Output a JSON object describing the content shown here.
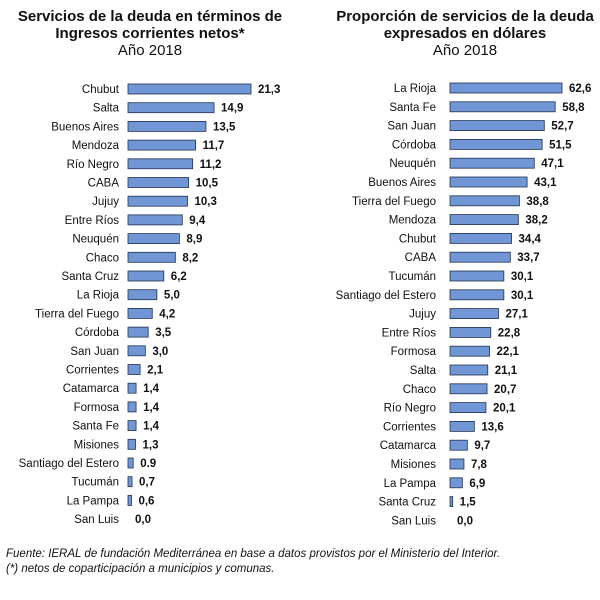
{
  "chart_data": [
    {
      "type": "bar",
      "orientation": "horizontal",
      "title": "Servicios de la deuda en términos de Ingresos corrientes netos*",
      "subtitle": "Año 2018",
      "bar_color": "#7096d6",
      "categories": [
        "Chubut",
        "Salta",
        "Buenos Aires",
        "Mendoza",
        "Río Negro",
        "CABA",
        "Jujuy",
        "Entre Ríos",
        "Neuquén",
        "Chaco",
        "Santa Cruz",
        "La Rioja",
        "Tierra del Fuego",
        "Córdoba",
        "San Juan",
        "Corrientes",
        "Catamarca",
        "Formosa",
        "Santa Fe",
        "Misiones",
        "Santiago del Estero",
        "Tucumán",
        "La Pampa",
        "San Luis"
      ],
      "values": [
        21.3,
        14.9,
        13.5,
        11.7,
        11.2,
        10.5,
        10.3,
        9.4,
        8.9,
        8.2,
        6.2,
        5.0,
        4.2,
        3.5,
        3.0,
        2.1,
        1.4,
        1.4,
        1.4,
        1.3,
        0.9,
        0.7,
        0.6,
        0.0
      ],
      "value_labels": [
        "21,3",
        "14,9",
        "13,5",
        "11,7",
        "11,2",
        "10,5",
        "10,3",
        "9,4",
        "8,9",
        "8,2",
        "6,2",
        "5,0",
        "4,2",
        "3,5",
        "3,0",
        "2,1",
        "1,4",
        "1,4",
        "1,4",
        "1,3",
        "0.9",
        "0,7",
        "0,6",
        "0,0"
      ],
      "xlim": [
        0,
        21.3
      ]
    },
    {
      "type": "bar",
      "orientation": "horizontal",
      "title": "Proporción de servicios de la deuda expresados en dólares",
      "subtitle": "Año 2018",
      "bar_color": "#7096d6",
      "categories": [
        "La Rioja",
        "Santa Fe",
        "San Juan",
        "Córdoba",
        "Neuquén",
        "Buenos Aires",
        "Tierra del Fuego",
        "Mendoza",
        "Chubut",
        "CABA",
        "Tucumán",
        "Santiago del Estero",
        "Jujuy",
        "Entre Ríos",
        "Formosa",
        "Salta",
        "Chaco",
        "Río Negro",
        "Corrientes",
        "Catamarca",
        "Misiones",
        "La Pampa",
        "Santa Cruz",
        "San Luis"
      ],
      "values": [
        62.6,
        58.8,
        52.7,
        51.5,
        47.1,
        43.1,
        38.8,
        38.2,
        34.4,
        33.7,
        30.1,
        30.1,
        27.1,
        22.8,
        22.1,
        21.1,
        20.7,
        20.1,
        13.6,
        9.7,
        7.8,
        6.9,
        1.5,
        0.0
      ],
      "value_labels": [
        "62,6",
        "58,8",
        "52,7",
        "51,5",
        "47,1",
        "43,1",
        "38,8",
        "38,2",
        "34,4",
        "33,7",
        "30,1",
        "30,1",
        "27,1",
        "22,8",
        "22,1",
        "21,1",
        "20,7",
        "20,1",
        "13,6",
        "9,7",
        "7,8",
        "6,9",
        "1,5",
        "0,0"
      ],
      "xlim": [
        0,
        62.6
      ]
    }
  ],
  "footnotes": {
    "source": "Fuente: IERAL de fundación Mediterránea en base a datos provistos por el Ministerio del Interior.",
    "note": "(*) netos de coparticipación a municipios y comunas."
  }
}
